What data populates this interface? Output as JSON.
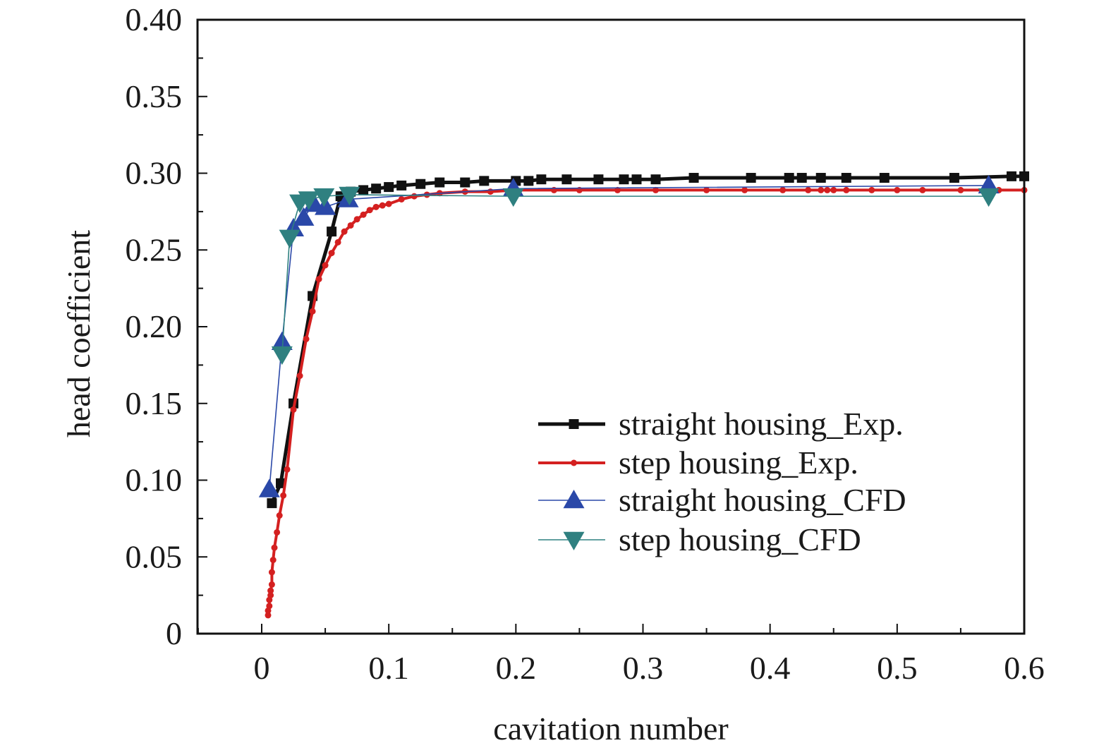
{
  "chart_data": {
    "type": "line",
    "title": "",
    "xlabel": "cavitation number",
    "ylabel": "head coefficient",
    "xlim": [
      -0.05,
      0.6
    ],
    "ylim": [
      0,
      0.4
    ],
    "x_ticks": [
      "0",
      "0.1",
      "0.2",
      "0.3",
      "0.4",
      "0.5",
      "0.6"
    ],
    "x_tick_values": [
      0,
      0.1,
      0.2,
      0.3,
      0.4,
      0.5,
      0.6
    ],
    "y_ticks": [
      "0",
      "0.05",
      "0.10",
      "0.15",
      "0.20",
      "0.25",
      "0.30",
      "0.35",
      "0.40"
    ],
    "y_tick_values": [
      0,
      0.05,
      0.1,
      0.15,
      0.2,
      0.25,
      0.3,
      0.35,
      0.4
    ],
    "grid": false,
    "legend_position": "lower-right",
    "series": [
      {
        "name": "straight housing_Exp.",
        "color": "#111111",
        "marker": "square",
        "x": [
          0.008,
          0.015,
          0.025,
          0.04,
          0.055,
          0.062,
          0.07,
          0.08,
          0.09,
          0.1,
          0.11,
          0.125,
          0.14,
          0.16,
          0.175,
          0.2,
          0.21,
          0.22,
          0.24,
          0.265,
          0.285,
          0.295,
          0.31,
          0.34,
          0.385,
          0.415,
          0.425,
          0.44,
          0.46,
          0.49,
          0.545,
          0.59,
          0.6
        ],
        "y": [
          0.085,
          0.098,
          0.15,
          0.22,
          0.262,
          0.285,
          0.288,
          0.289,
          0.29,
          0.291,
          0.292,
          0.293,
          0.294,
          0.294,
          0.295,
          0.295,
          0.295,
          0.296,
          0.296,
          0.296,
          0.296,
          0.296,
          0.296,
          0.297,
          0.297,
          0.297,
          0.297,
          0.297,
          0.297,
          0.297,
          0.297,
          0.298,
          0.298
        ]
      },
      {
        "name": "step housing_Exp.",
        "color": "#d42020",
        "marker": "circle",
        "x": [
          0.005,
          0.005,
          0.006,
          0.006,
          0.007,
          0.007,
          0.008,
          0.008,
          0.009,
          0.01,
          0.012,
          0.014,
          0.017,
          0.02,
          0.025,
          0.03,
          0.035,
          0.04,
          0.045,
          0.05,
          0.055,
          0.06,
          0.065,
          0.07,
          0.075,
          0.08,
          0.085,
          0.09,
          0.095,
          0.1,
          0.11,
          0.12,
          0.13,
          0.14,
          0.16,
          0.18,
          0.2,
          0.23,
          0.25,
          0.28,
          0.31,
          0.35,
          0.38,
          0.41,
          0.43,
          0.44,
          0.445,
          0.45,
          0.46,
          0.48,
          0.5,
          0.52,
          0.55,
          0.58,
          0.6
        ],
        "y": [
          0.012,
          0.015,
          0.018,
          0.022,
          0.025,
          0.028,
          0.032,
          0.04,
          0.048,
          0.056,
          0.066,
          0.077,
          0.09,
          0.107,
          0.146,
          0.168,
          0.192,
          0.21,
          0.231,
          0.24,
          0.248,
          0.255,
          0.262,
          0.266,
          0.27,
          0.273,
          0.276,
          0.278,
          0.279,
          0.28,
          0.283,
          0.285,
          0.286,
          0.287,
          0.288,
          0.288,
          0.289,
          0.289,
          0.289,
          0.289,
          0.289,
          0.289,
          0.289,
          0.289,
          0.289,
          0.289,
          0.289,
          0.289,
          0.289,
          0.289,
          0.289,
          0.289,
          0.289,
          0.289,
          0.289
        ]
      },
      {
        "name": "straight housing_CFD",
        "color": "#2a48a8",
        "marker": "triangle-up",
        "x": [
          0.006,
          0.016,
          0.025,
          0.033,
          0.041,
          0.05,
          0.068,
          0.198,
          0.572
        ],
        "y": [
          0.094,
          0.19,
          0.264,
          0.271,
          0.28,
          0.278,
          0.283,
          0.29,
          0.292
        ]
      },
      {
        "name": "step housing_CFD",
        "color": "#2f8080",
        "marker": "triangle-down",
        "x": [
          0.016,
          0.022,
          0.03,
          0.037,
          0.049,
          0.069,
          0.198,
          0.572
        ],
        "y": [
          0.182,
          0.258,
          0.281,
          0.283,
          0.285,
          0.286,
          0.285,
          0.285
        ]
      }
    ]
  }
}
